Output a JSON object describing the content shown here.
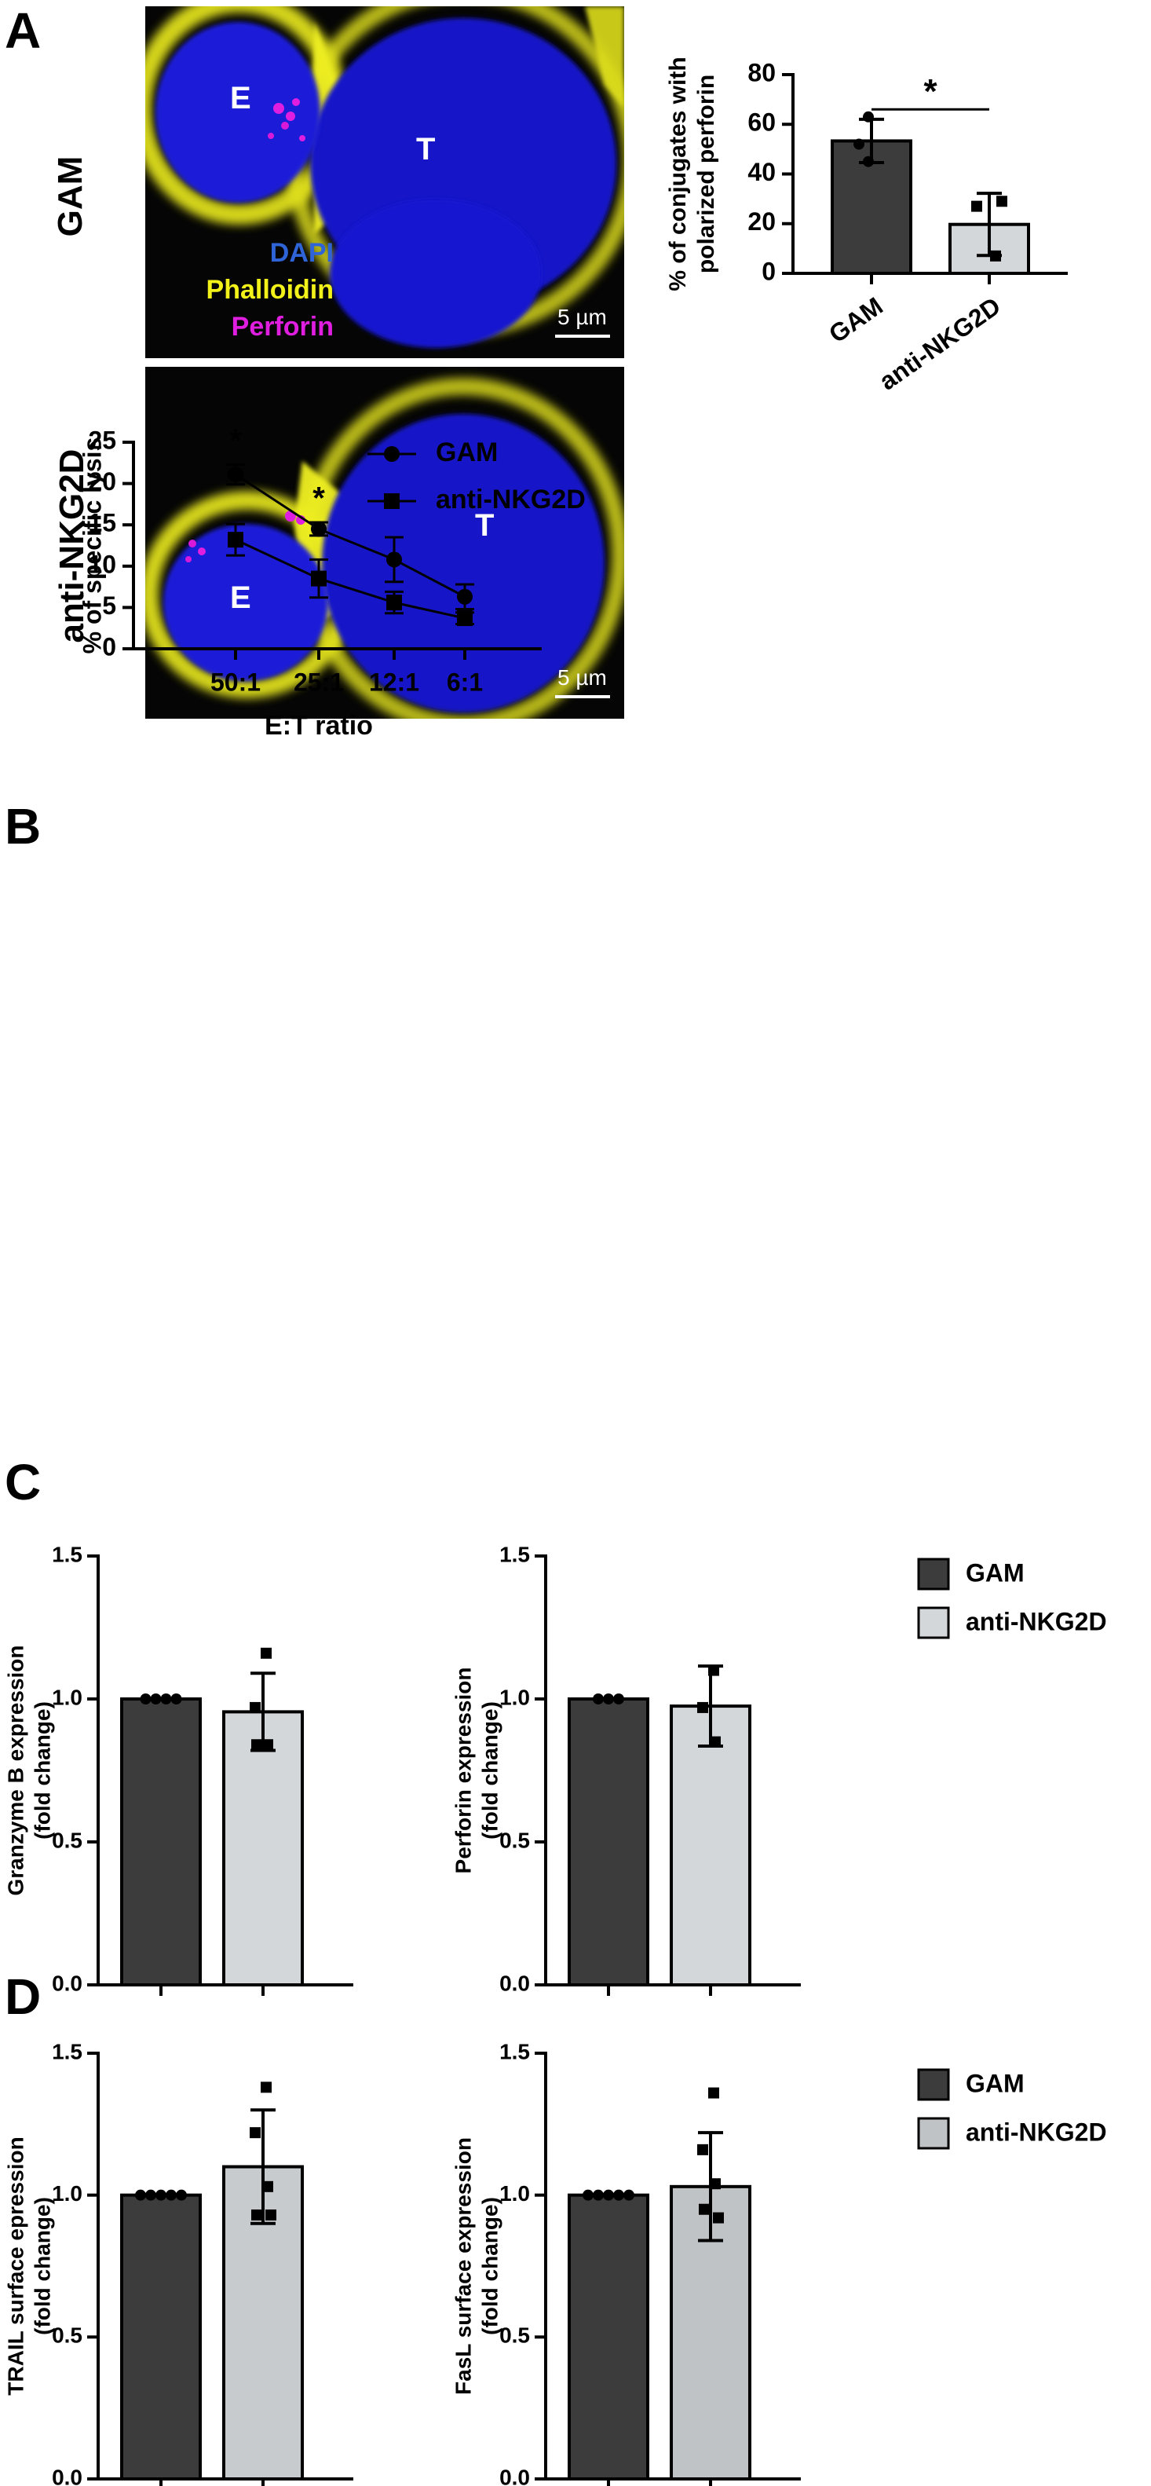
{
  "panels": {
    "a": "A",
    "b": "B",
    "c": "C",
    "d": "D"
  },
  "microscopy": {
    "row1_label": "GAM",
    "row2_label": "anti-NKG2D",
    "effector_label": "E",
    "target_label": "T",
    "legend": [
      "DAPI",
      "Phalloidin",
      "Perforin"
    ],
    "scale_bar": "5 µm",
    "colors": {
      "dapi": "#1a1ee6",
      "phalloidin": "#f2f21a",
      "perforin": "#e01ee0"
    }
  },
  "colors": {
    "gam_bar": "#3c3c3c",
    "nkg2d_bar": "#d4d7da",
    "nkg2d_bar_d": "#c0c3c6",
    "significance": "*"
  },
  "chart_data": [
    {
      "id": "polarized",
      "type": "bar",
      "categories": [
        "GAM",
        "anti-NKG2D"
      ],
      "values": [
        53.3,
        19.7
      ],
      "errors": [
        8.7,
        12.5
      ],
      "points": [
        [
          63,
          52,
          45
        ],
        [
          29,
          27,
          7
        ]
      ],
      "point_shapes": [
        "circle",
        "square"
      ],
      "ylabel": [
        "% of conjugates with",
        "polarized perforin"
      ],
      "ylim": [
        0,
        80
      ],
      "yticks": [
        0,
        20,
        40,
        60,
        80
      ],
      "significance": "*"
    },
    {
      "id": "lysis",
      "type": "line",
      "x": [
        "50:1",
        "25:1",
        "12:1",
        "6:1"
      ],
      "series": [
        {
          "name": "GAM",
          "marker": "circle",
          "values": [
            21.1,
            14.5,
            10.8,
            6.3
          ],
          "errors": [
            1.2,
            0.8,
            2.7,
            1.5
          ]
        },
        {
          "name": "anti-NKG2D",
          "marker": "square",
          "values": [
            13.2,
            8.5,
            5.6,
            3.7
          ],
          "errors": [
            1.9,
            2.3,
            1.3,
            0.7
          ]
        }
      ],
      "significant": [
        true,
        true,
        false,
        false
      ],
      "significance": "*",
      "xlabel": "E:T ratio",
      "ylabel": "% of specific lysis",
      "ylim": [
        0,
        25
      ],
      "yticks": [
        0,
        5,
        10,
        15,
        20,
        25
      ],
      "legend": "top-right"
    },
    {
      "id": "granzyme",
      "type": "bar",
      "categories": [
        "GAM",
        "anti-NKG2D"
      ],
      "values": [
        1.0,
        0.955
      ],
      "errors": [
        0,
        0.135
      ],
      "points": [
        [
          1,
          1,
          1,
          1
        ],
        [
          1.16,
          0.97,
          0.84,
          0.84
        ]
      ],
      "point_shapes": [
        "circle",
        "square"
      ],
      "ylabel": [
        "Granzyme B expression",
        "(fold change)"
      ],
      "ylim": [
        0,
        1.5
      ],
      "yticks": [
        "0.0",
        "0.5",
        "1.0",
        "1.5"
      ]
    },
    {
      "id": "perforin",
      "type": "bar",
      "categories": [
        "GAM",
        "anti-NKG2D"
      ],
      "values": [
        1.0,
        0.975
      ],
      "errors": [
        0,
        0.14
      ],
      "points": [
        [
          1,
          1,
          1
        ],
        [
          1.1,
          0.97,
          0.85
        ]
      ],
      "point_shapes": [
        "circle",
        "square"
      ],
      "ylabel": [
        "Perforin expression",
        "(fold change)"
      ],
      "ylim": [
        0,
        1.5
      ],
      "yticks": [
        "0.0",
        "0.5",
        "1.0",
        "1.5"
      ]
    },
    {
      "id": "trail",
      "type": "bar",
      "categories": [
        "GAM",
        "anti-NKG2D"
      ],
      "values": [
        1.0,
        1.1
      ],
      "errors": [
        0,
        0.2
      ],
      "points": [
        [
          1,
          1,
          1,
          1,
          1
        ],
        [
          1.38,
          1.22,
          1.03,
          0.93,
          0.93
        ]
      ],
      "point_shapes": [
        "circle",
        "square"
      ],
      "ylabel": [
        "TRAIL surface epression",
        "(fold change)"
      ],
      "ylim": [
        0,
        1.5
      ],
      "yticks": [
        "0.0",
        "0.5",
        "1.0",
        "1.5"
      ]
    },
    {
      "id": "fasl",
      "type": "bar",
      "categories": [
        "GAM",
        "anti-NKG2D"
      ],
      "values": [
        1.0,
        1.03
      ],
      "errors": [
        0,
        0.19
      ],
      "points": [
        [
          1,
          1,
          1,
          1,
          1
        ],
        [
          1.36,
          1.16,
          1.04,
          0.95,
          0.92
        ]
      ],
      "point_shapes": [
        "circle",
        "square"
      ],
      "ylabel": [
        "FasL surface expression",
        "(fold change)"
      ],
      "ylim": [
        0,
        1.5
      ],
      "yticks": [
        "0.0",
        "0.5",
        "1.0",
        "1.5"
      ]
    }
  ],
  "legend_cd": [
    "GAM",
    "anti-NKG2D"
  ]
}
